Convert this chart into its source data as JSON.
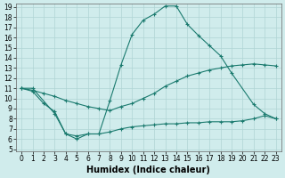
{
  "title": "",
  "xlabel": "Humidex (Indice chaleur)",
  "bg_color": "#d0ecec",
  "grid_color": "#b0d4d4",
  "line_color": "#1a7a6e",
  "top_x": [
    0,
    1,
    3,
    4,
    5,
    6,
    7,
    8,
    9,
    10,
    11,
    12,
    13,
    14,
    15,
    16,
    17,
    18,
    19,
    21,
    22,
    23
  ],
  "top_y": [
    11,
    11,
    8.5,
    6.5,
    6.0,
    6.5,
    6.5,
    9.8,
    13.3,
    16.3,
    17.7,
    18.3,
    19.1,
    19.1,
    17.3,
    16.2,
    15.2,
    14.2,
    12.5,
    9.4,
    8.5,
    8.0
  ],
  "mid_x": [
    0,
    1,
    2,
    3,
    4,
    5,
    6,
    7,
    8,
    9,
    10,
    11,
    12,
    13,
    14,
    15,
    16,
    17,
    18,
    19,
    20,
    21,
    22,
    23
  ],
  "mid_y": [
    11,
    10.8,
    10.5,
    10.2,
    9.8,
    9.5,
    9.2,
    9.0,
    8.8,
    9.2,
    9.5,
    10.0,
    10.5,
    11.2,
    11.7,
    12.2,
    12.5,
    12.8,
    13.0,
    13.2,
    13.3,
    13.4,
    13.3,
    13.2
  ],
  "bot_x": [
    0,
    1,
    2,
    3,
    4,
    5,
    6,
    7,
    8,
    9,
    10,
    11,
    12,
    13,
    14,
    15,
    16,
    17,
    18,
    19,
    20,
    21,
    22,
    23
  ],
  "bot_y": [
    11,
    10.7,
    9.5,
    8.7,
    6.5,
    6.3,
    6.5,
    6.5,
    6.7,
    7.0,
    7.2,
    7.3,
    7.4,
    7.5,
    7.5,
    7.6,
    7.6,
    7.7,
    7.7,
    7.7,
    7.8,
    8.0,
    8.3,
    8.0
  ],
  "ylim": [
    5,
    19
  ],
  "xlim": [
    -0.5,
    23.5
  ],
  "yticks": [
    5,
    6,
    7,
    8,
    9,
    10,
    11,
    12,
    13,
    14,
    15,
    16,
    17,
    18,
    19
  ],
  "xticks": [
    0,
    1,
    2,
    3,
    4,
    5,
    6,
    7,
    8,
    9,
    10,
    11,
    12,
    13,
    14,
    15,
    16,
    17,
    18,
    19,
    20,
    21,
    22,
    23
  ],
  "tick_fontsize": 5.5,
  "label_fontsize": 7,
  "marker": "+",
  "markersize": 3,
  "linewidth": 0.8
}
